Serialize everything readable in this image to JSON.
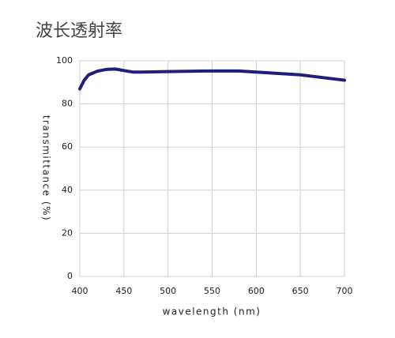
{
  "chart_data": {
    "type": "line",
    "title": "波长透射率",
    "x_label": "wavelength (nm)",
    "y_label": "transmittance (%)",
    "series": [
      {
        "name": "transmittance",
        "color": "#1f1f7a",
        "x": [
          400,
          405,
          410,
          420,
          430,
          440,
          450,
          460,
          470,
          500,
          550,
          580,
          600,
          650,
          700
        ],
        "values": [
          87,
          91,
          93.5,
          95.2,
          96,
          96.2,
          95.5,
          94.8,
          94.8,
          95,
          95.3,
          95.3,
          94.8,
          93.5,
          91
        ]
      }
    ],
    "xlim": [
      400,
      700
    ],
    "xticks": [
      400,
      450,
      500,
      550,
      600,
      650,
      700
    ],
    "ylim": [
      0,
      100
    ],
    "yticks": [
      0,
      20,
      40,
      60,
      80,
      100
    ],
    "grid": true
  }
}
